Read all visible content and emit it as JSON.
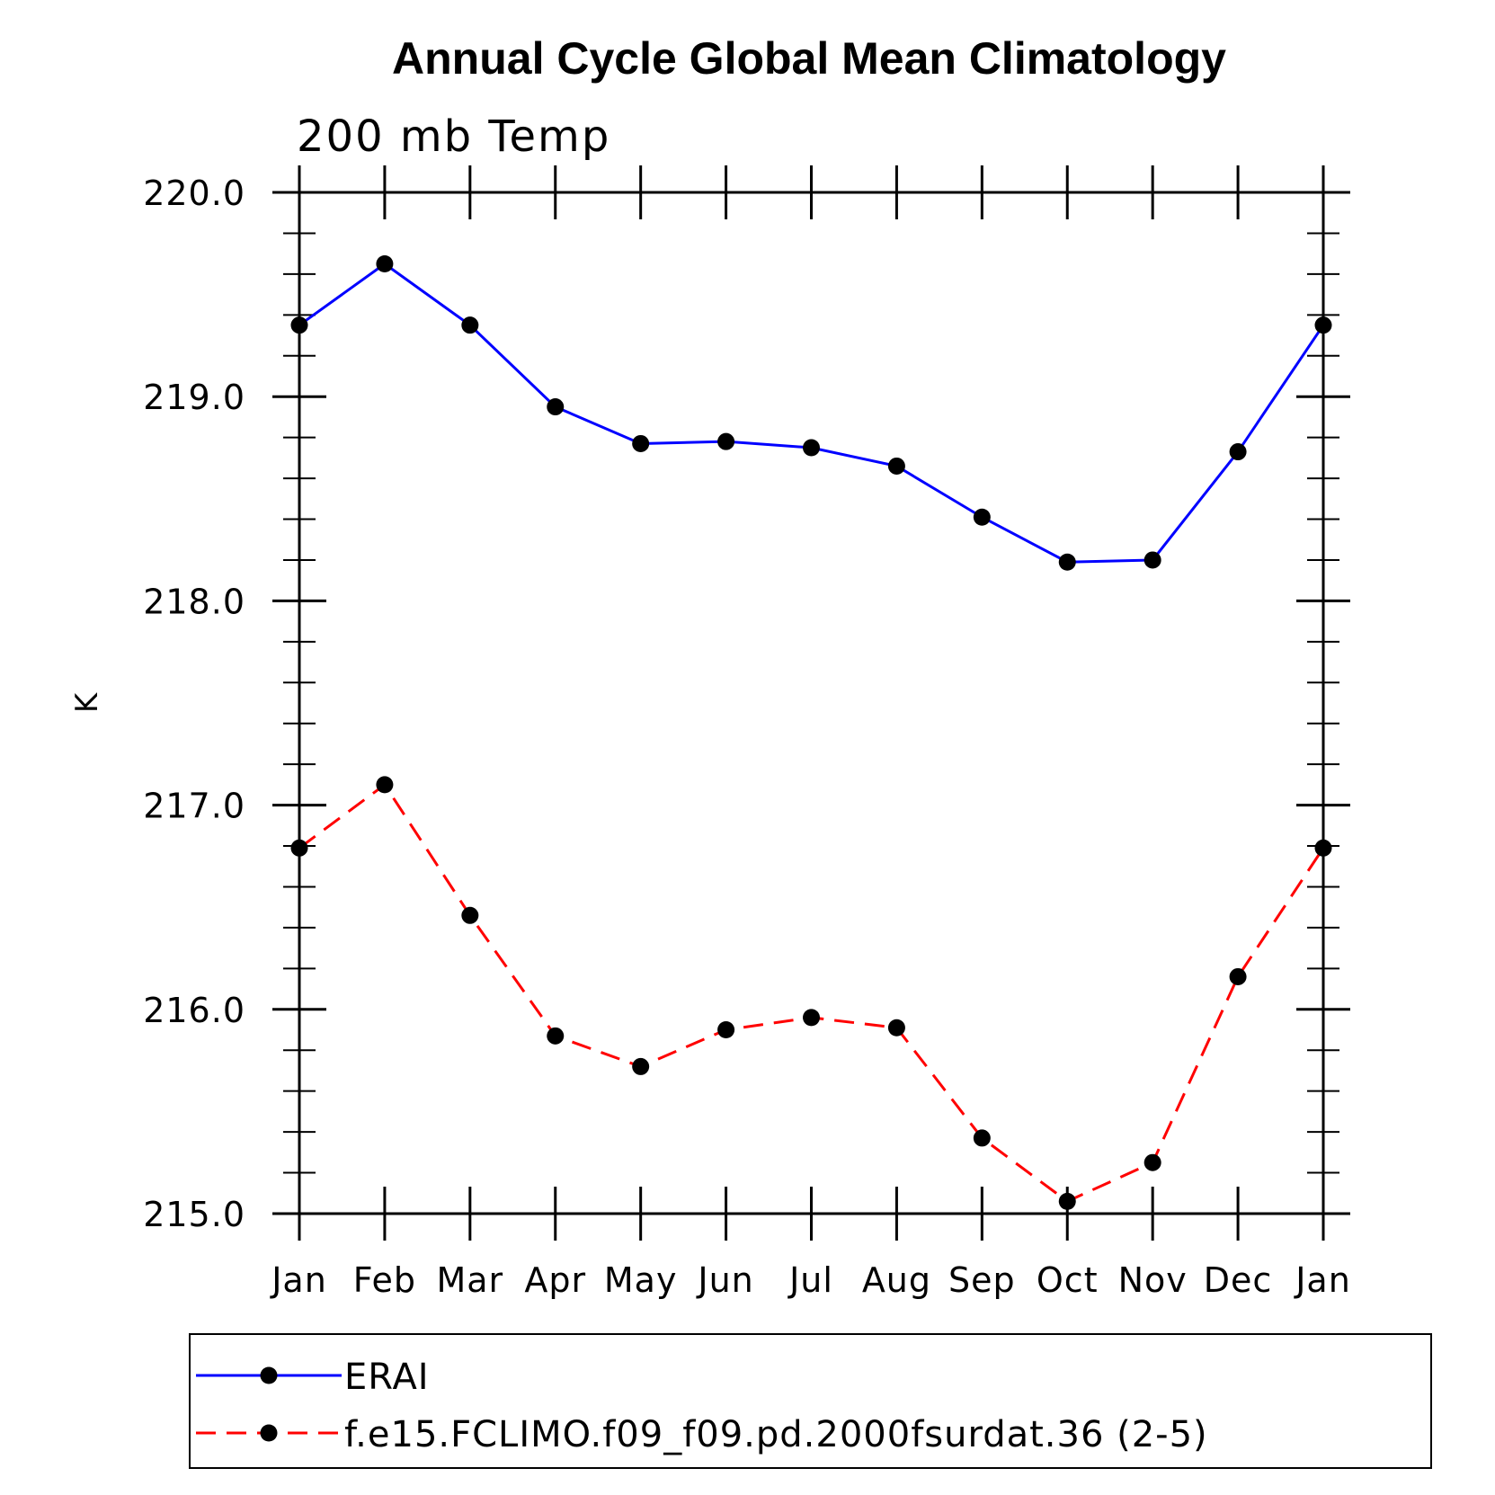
{
  "chart_data": {
    "type": "line",
    "title": "Annual Cycle Global Mean Climatology",
    "subtitle": "200 mb Temp",
    "ylabel": "K",
    "xlabel": "",
    "categories": [
      "Jan",
      "Feb",
      "Mar",
      "Apr",
      "May",
      "Jun",
      "Jul",
      "Aug",
      "Sep",
      "Oct",
      "Nov",
      "Dec",
      "Jan"
    ],
    "ylim": [
      215.0,
      220.0
    ],
    "yticks": [
      "215.0",
      "216.0",
      "217.0",
      "218.0",
      "219.0",
      "220.0"
    ],
    "grid": false,
    "legend_position": "bottom",
    "series": [
      {
        "name": "ERAI",
        "color": "#0000ff",
        "style": "solid",
        "marker": "circle",
        "values": [
          219.35,
          219.65,
          219.35,
          218.95,
          218.77,
          218.78,
          218.75,
          218.66,
          218.41,
          218.19,
          218.2,
          218.73,
          219.35
        ]
      },
      {
        "name": "f.e15.FCLIMO.f09_f09.pd.2000fsurdat.36 (2-5)",
        "color": "#ff0000",
        "style": "dashed",
        "marker": "circle",
        "values": [
          216.79,
          217.1,
          216.46,
          215.87,
          215.72,
          215.9,
          215.96,
          215.91,
          215.37,
          215.06,
          215.25,
          216.16,
          216.79
        ]
      }
    ]
  }
}
